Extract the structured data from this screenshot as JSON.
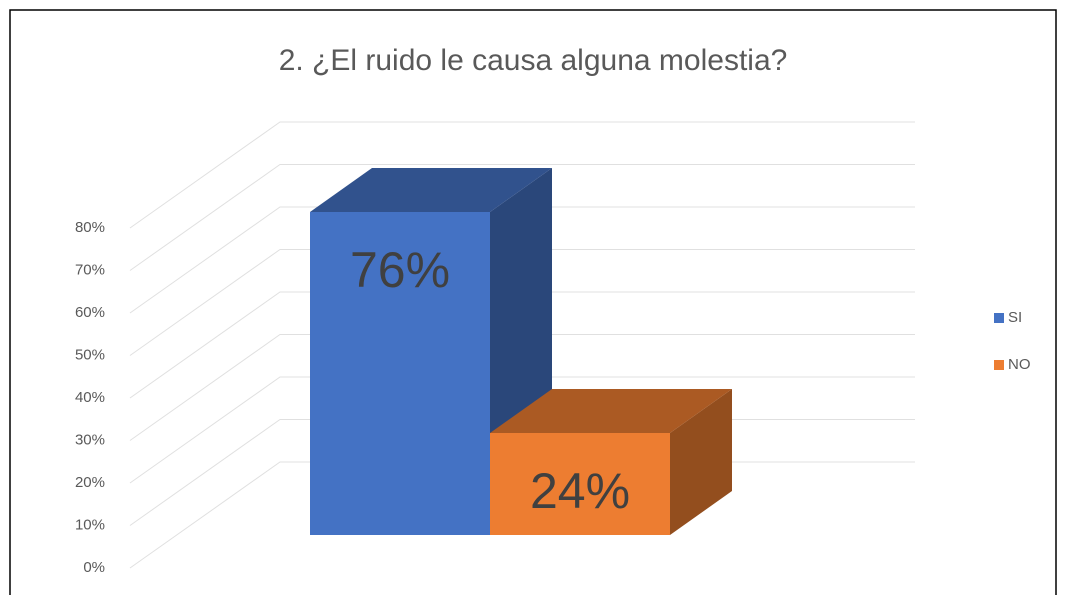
{
  "chart_data": {
    "type": "bar3d",
    "title": "2. ¿El ruido le causa alguna molestia?",
    "categories": [
      null
    ],
    "series": [
      {
        "name": "SI",
        "color": "#4472c4",
        "values": [
          76
        ],
        "value_labels": [
          "76%"
        ]
      },
      {
        "name": "NO",
        "color": "#ed7d31",
        "values": [
          24
        ],
        "value_labels": [
          "24%"
        ]
      }
    ],
    "ylim": [
      0,
      80
    ],
    "yticks": [
      {
        "value": 0,
        "label": "0%"
      },
      {
        "value": 10,
        "label": "10%"
      },
      {
        "value": 20,
        "label": "20%"
      },
      {
        "value": 30,
        "label": "30%"
      },
      {
        "value": 40,
        "label": "40%"
      },
      {
        "value": 50,
        "label": "50%"
      },
      {
        "value": 60,
        "label": "60%"
      },
      {
        "value": 70,
        "label": "70%"
      },
      {
        "value": 80,
        "label": "80%"
      }
    ],
    "grid": true,
    "legend": "right"
  }
}
